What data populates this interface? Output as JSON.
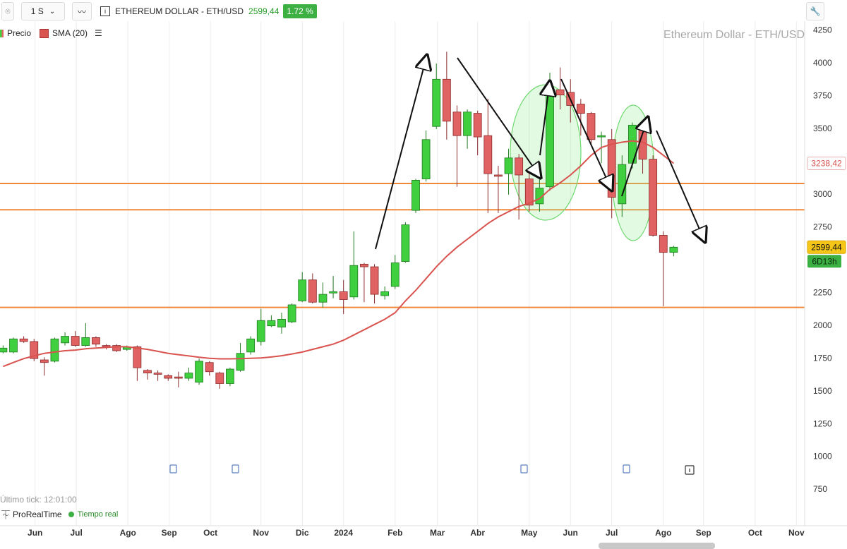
{
  "toolbar": {
    "interval": "1 S",
    "symbol": "ETHEREUM DOLLAR - ETH/USD",
    "price": "2599,44",
    "change": "1.72 %"
  },
  "status": {
    "last_tick": "Último tick: 12:01:00",
    "brand": "ProRealTime",
    "mode": "Tiempo real"
  },
  "chart_data": {
    "type": "candlestick",
    "title": "Ethereum Dollar - ETH/USD",
    "name": "Precio",
    "up_color": "#3fcf3f",
    "down_color": "#e06262",
    "categories": [
      null,
      null,
      null,
      null,
      null,
      null,
      null,
      null,
      null,
      null,
      null,
      null,
      null,
      null,
      null,
      null,
      null,
      null,
      null,
      null,
      null,
      null,
      null,
      null,
      null,
      null,
      null,
      null,
      null,
      null,
      null,
      null,
      null,
      null,
      null,
      null,
      null,
      null,
      null,
      null,
      null,
      null,
      null,
      null,
      null,
      null,
      null,
      null,
      null,
      null,
      null,
      null,
      null,
      null,
      null,
      null,
      null,
      null,
      null,
      null,
      null,
      null,
      null,
      null,
      null,
      null
    ],
    "open": [
      1800,
      1800,
      1900,
      1880,
      1740,
      1730,
      1870,
      1920,
      1850,
      1910,
      1850,
      1850,
      1820,
      1840,
      1660,
      1640,
      1620,
      1610,
      1600,
      1570,
      1720,
      1640,
      1560,
      1660,
      1800,
      1880,
      2000,
      1990,
      2030,
      2190,
      2350,
      2180,
      2250,
      2260,
      2220,
      2470,
      2450,
      2230,
      2300,
      2490,
      2880,
      3120,
      3520,
      3880,
      3630,
      3450,
      3620,
      3450,
      3150,
      3160,
      3280,
      3120,
      2930,
      3060,
      3800,
      3780,
      3690,
      3620,
      3440,
      3420,
      2930,
      3240,
      3530,
      3270,
      2690,
      2560
    ],
    "high": [
      1850,
      1910,
      1920,
      1900,
      1760,
      1910,
      1950,
      1960,
      2020,
      1920,
      1860,
      1860,
      1850,
      1850,
      1670,
      1660,
      1630,
      1650,
      1680,
      1750,
      1730,
      1650,
      1680,
      1870,
      1920,
      2130,
      2080,
      2100,
      2170,
      2410,
      2400,
      2330,
      2380,
      2350,
      2720,
      2480,
      2470,
      2300,
      2540,
      2790,
      3120,
      3490,
      4000,
      4090,
      3680,
      3650,
      3640,
      3730,
      3220,
      3350,
      3310,
      3180,
      3170,
      3930,
      3970,
      3880,
      3730,
      3630,
      3480,
      3500,
      3300,
      3550,
      3560,
      3300,
      2720,
      2610
    ],
    "low": [
      1790,
      1790,
      1870,
      1730,
      1620,
      1720,
      1850,
      1840,
      1840,
      1840,
      1820,
      1800,
      1810,
      1580,
      1590,
      1580,
      1580,
      1530,
      1580,
      1550,
      1620,
      1520,
      1540,
      1650,
      1780,
      1850,
      1990,
      1940,
      2020,
      2180,
      2170,
      2140,
      2210,
      2090,
      2200,
      2180,
      2170,
      2200,
      2280,
      2480,
      2860,
      3100,
      3500,
      3420,
      3060,
      3350,
      3300,
      2860,
      2860,
      3000,
      2810,
      2870,
      2870,
      3030,
      3650,
      3550,
      3450,
      3380,
      3240,
      2820,
      2830,
      3200,
      3160,
      2680,
      2150,
      2530
    ],
    "close": [
      1830,
      1900,
      1880,
      1750,
      1720,
      1900,
      1920,
      1850,
      1910,
      1860,
      1840,
      1810,
      1840,
      1680,
      1640,
      1630,
      1600,
      1600,
      1640,
      1730,
      1650,
      1560,
      1670,
      1790,
      1900,
      2040,
      2040,
      2050,
      2160,
      2350,
      2180,
      2240,
      2260,
      2200,
      2460,
      2450,
      2240,
      2260,
      2480,
      2770,
      3110,
      3420,
      3880,
      3560,
      3450,
      3630,
      3440,
      3160,
      3140,
      3280,
      3150,
      2920,
      3050,
      3800,
      3760,
      3680,
      3620,
      3420,
      3450,
      2980,
      3230,
      3530,
      3270,
      2690,
      2560,
      2599.44
    ],
    "series": [
      {
        "name": "SMA (20)",
        "color": "#d9534f",
        "values": [
          1690,
          1720,
          1750,
          1770,
          1790,
          1800,
          1810,
          1815,
          1825,
          1830,
          1835,
          1840,
          1840,
          1830,
          1820,
          1805,
          1790,
          1780,
          1770,
          1760,
          1752,
          1748,
          1748,
          1750,
          1752,
          1755,
          1762,
          1772,
          1785,
          1800,
          1820,
          1840,
          1860,
          1890,
          1930,
          1970,
          2010,
          2050,
          2100,
          2190,
          2270,
          2360,
          2450,
          2530,
          2600,
          2660,
          2720,
          2780,
          2830,
          2870,
          2910,
          2935,
          2970,
          3040,
          3090,
          3150,
          3220,
          3300,
          3360,
          3385,
          3400,
          3410,
          3400,
          3360,
          3300,
          3238.42
        ]
      }
    ],
    "hlines": [
      3085,
      2885,
      2140
    ],
    "hline_color": "#f0883a",
    "price_tags": [
      {
        "value": 3238.42,
        "label": "3238,42"
      },
      {
        "value": 2599.44,
        "label": "2599,44"
      }
    ],
    "countdown": "6D13h",
    "ylim": [
      475.6,
      4322.8
    ],
    "yticks": [
      750,
      1000,
      1250,
      1500,
      1750,
      2000,
      2250,
      2500,
      2750,
      3000,
      3250,
      3500,
      3750,
      4000,
      4250
    ],
    "xlim": [
      -0.3,
      77.7
    ],
    "xticks": [
      {
        "value": 3.1,
        "label": "Jun"
      },
      {
        "value": 7.1,
        "label": "Jul"
      },
      {
        "value": 12.1,
        "label": "Ago"
      },
      {
        "value": 16.1,
        "label": "Sep"
      },
      {
        "value": 20.1,
        "label": "Oct"
      },
      {
        "value": 25.0,
        "label": "Nov"
      },
      {
        "value": 29.0,
        "label": "Dic"
      },
      {
        "value": 33.0,
        "label": "2024"
      },
      {
        "value": 38.0,
        "label": "Feb"
      },
      {
        "value": 42.1,
        "label": "Mar"
      },
      {
        "value": 46.0,
        "label": "Abr"
      },
      {
        "value": 51.0,
        "label": "May"
      },
      {
        "value": 55.0,
        "label": "Jun"
      },
      {
        "value": 59.0,
        "label": "Jul"
      },
      {
        "value": 64.0,
        "label": "Ago"
      },
      {
        "value": 67.9,
        "label": "Sep"
      },
      {
        "value": 72.9,
        "label": "Oct"
      },
      {
        "value": 76.9,
        "label": "Nov"
      }
    ],
    "grid": true
  }
}
